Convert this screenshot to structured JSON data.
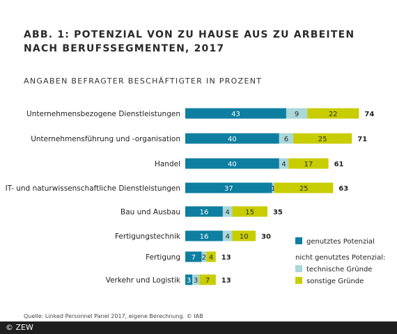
{
  "title": "ABB. 1: POTENZIAL VON ZU HAUSE AUS ZU ARBEITEN NACH BERUFSSEGMENTEN, 2017",
  "subtitle": "ANGABEN BEFRAGTER BESCHÄFTIGTER IN PROZENT",
  "source": "Quelle: Linked Personnel Panel 2017, eigene Berechnung. © IAB",
  "footer": "© ZEW",
  "colors": {
    "genutzt": "#0e7ea1",
    "technisch": "#a9d7da",
    "sonstige": "#c8cd00"
  },
  "chart_data": {
    "type": "bar",
    "stacked": true,
    "orientation": "horizontal",
    "categories": [
      "Unternehmensbezogene Dienstleistungen",
      "Unternehmensführung und -organisation",
      "Handel",
      "IT- und naturwissenschaftliche Dienstleistungen",
      "Bau und Ausbau",
      "Fertigungstechnik",
      "Fertigung",
      "Verkehr und Logistik"
    ],
    "series": [
      {
        "name": "genutztes Potenzial",
        "values": [
          43,
          40,
          40,
          37,
          16,
          16,
          7,
          3
        ]
      },
      {
        "name": "technische Gründe",
        "values": [
          9,
          6,
          4,
          1,
          4,
          4,
          2,
          3
        ]
      },
      {
        "name": "sonstige Gründe",
        "values": [
          22,
          25,
          17,
          25,
          15,
          10,
          4,
          7
        ]
      }
    ],
    "totals": [
      74,
      71,
      61,
      63,
      35,
      30,
      13,
      13
    ],
    "legend": {
      "group_label": "nicht genutztes Potenzial:",
      "placement": "bottom-right"
    }
  }
}
